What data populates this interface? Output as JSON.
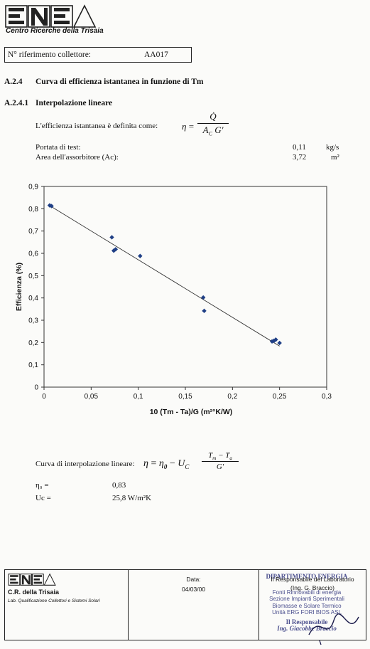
{
  "header": {
    "logo_text": "ENEA",
    "center_name": "Centro Ricerche della Trisaia"
  },
  "reference": {
    "label": "N° riferimento collettore:",
    "value": "AA017"
  },
  "section": {
    "num": "A.2.4",
    "title": "Curva di efficienza istantanea in funzione di Tm"
  },
  "subsection": {
    "num": "A.2.4.1",
    "title": "Interpolazione lineare"
  },
  "definition": {
    "text": "L'efficienza istantanea è definita come:",
    "lhs": "η",
    "eq": "=",
    "numerator": "Q̇",
    "denominator": "A",
    "den_sub": "C",
    "den_tail": "G'"
  },
  "params": [
    {
      "label": "Portata di test:",
      "value": "0,11",
      "unit": "kg/s"
    },
    {
      "label": "Area dell'assorbitore (Ac):",
      "value": "3,72",
      "unit": "m²"
    }
  ],
  "chart_data": {
    "type": "scatter",
    "xlabel": "10 (Tm - Ta)/G  (m²°K/W)",
    "ylabel": "Efficienza (%)",
    "xlim": [
      0,
      0.3
    ],
    "ylim": [
      0,
      0.9
    ],
    "xticks": [
      "0",
      "0,05",
      "0,1",
      "0,15",
      "0,2",
      "0,25",
      "0,3"
    ],
    "yticks": [
      "0",
      "0,1",
      "0,2",
      "0,3",
      "0,4",
      "0,5",
      "0,6",
      "0,7",
      "0,8",
      "0,9"
    ],
    "points": [
      {
        "x": 0.006,
        "y": 0.815
      },
      {
        "x": 0.008,
        "y": 0.812
      },
      {
        "x": 0.072,
        "y": 0.672
      },
      {
        "x": 0.074,
        "y": 0.612
      },
      {
        "x": 0.076,
        "y": 0.618
      },
      {
        "x": 0.102,
        "y": 0.588
      },
      {
        "x": 0.169,
        "y": 0.402
      },
      {
        "x": 0.17,
        "y": 0.342
      },
      {
        "x": 0.242,
        "y": 0.205
      },
      {
        "x": 0.244,
        "y": 0.208
      },
      {
        "x": 0.246,
        "y": 0.213
      },
      {
        "x": 0.25,
        "y": 0.198
      }
    ],
    "fit_line": {
      "x": [
        0.005,
        0.25
      ],
      "y": [
        0.8165,
        0.1838
      ]
    },
    "marker_color": "#1f3f86",
    "grid": false
  },
  "interpolation": {
    "label": "Curva di interpolazione lineare:",
    "eta": "η",
    "eq": "=",
    "eta0": "η",
    "eta0_sub": "0",
    "minus": "−",
    "U": "U",
    "U_sub": "C",
    "num": "T",
    "num_sub1": "m",
    "num_mid": " − T",
    "num_sub2": "a",
    "den": "G'"
  },
  "results": [
    {
      "label": "η₀ =",
      "value": "0,83"
    },
    {
      "label": "Uc =",
      "value": "25,8  W/m²K"
    }
  ],
  "footer": {
    "logo_text": "ENEA",
    "org": "C.R. della Trisaia",
    "lab": "Lab. Qualificazione Collettori e Sistemi Solari",
    "date_label": "Data:",
    "date_value": "04/03/00",
    "resp_title": "Il Responsabile del Laboratorio",
    "resp_name": "(Ing. G. Braccio)",
    "stamp_lines": [
      "DIPARTIMENTO ENERGIA",
      "Fonti Rinnovabili di energia",
      "Sezione Impianti Sperimentali",
      "Biomasse e Solare Termico",
      "Unità ERG FORI BIOS ASL",
      "Il Responsabile",
      "Ing. Giacobbe Braccio"
    ]
  }
}
